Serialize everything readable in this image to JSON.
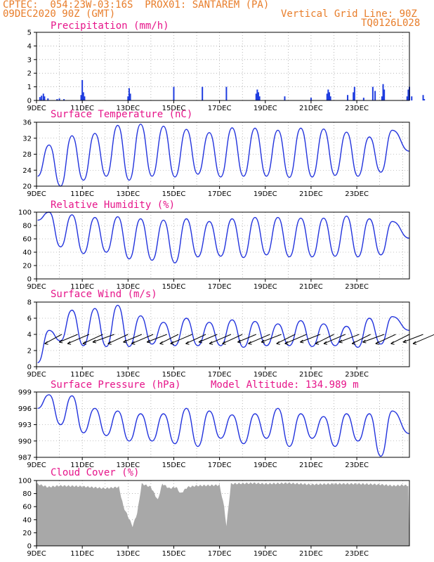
{
  "header": {
    "line1": "CPTEC:  054:23W-03:16S  PROX01: SANTAREM (PA)",
    "line2_left": "09DEC2020 90Z (GMT)",
    "line2_right": "Vertical Grid Line: 90Z",
    "line3_right": "TQ0126L028"
  },
  "colors": {
    "header": "#e87d2a",
    "title": "#e6158a",
    "series": "#2233dd",
    "bars": "#1f3de0",
    "cloud": "#a8a8a8"
  },
  "chart_data": [
    {
      "type": "bar",
      "title": "Precipitation (mm/h)",
      "ylim": [
        0,
        5
      ],
      "yticks": [
        0,
        1,
        2,
        3,
        4,
        5
      ],
      "x_categories": [
        "9DEC",
        "11DEC",
        "13DEC",
        "15DEC",
        "17DEC",
        "19DEC",
        "21DEC",
        "23DEC"
      ],
      "bars_day_value": [
        [
          0.15,
          0.25
        ],
        [
          0.22,
          0.35
        ],
        [
          0.3,
          0.5
        ],
        [
          0.35,
          0.3
        ],
        [
          0.5,
          0.15
        ],
        [
          0.9,
          0.1
        ],
        [
          1.0,
          0.15
        ],
        [
          1.2,
          0.1
        ],
        [
          1.95,
          0.4
        ],
        [
          2.0,
          1.5
        ],
        [
          2.05,
          0.6
        ],
        [
          2.1,
          0.3
        ],
        [
          4.0,
          0.3
        ],
        [
          4.05,
          0.9
        ],
        [
          4.1,
          0.5
        ],
        [
          6.0,
          1.0
        ],
        [
          7.25,
          1.0
        ],
        [
          8.3,
          1.0
        ],
        [
          9.6,
          0.5
        ],
        [
          9.65,
          0.8
        ],
        [
          9.7,
          0.6
        ],
        [
          9.75,
          0.3
        ],
        [
          10.85,
          0.3
        ],
        [
          12.0,
          0.2
        ],
        [
          12.7,
          0.5
        ],
        [
          12.75,
          0.8
        ],
        [
          12.8,
          0.6
        ],
        [
          12.85,
          0.3
        ],
        [
          13.6,
          0.4
        ],
        [
          13.85,
          0.6
        ],
        [
          13.9,
          1.0
        ],
        [
          14.3,
          0.2
        ],
        [
          14.7,
          1.0
        ],
        [
          14.8,
          0.7
        ],
        [
          15.1,
          0.3
        ],
        [
          15.15,
          1.2
        ],
        [
          15.2,
          0.8
        ],
        [
          16.2,
          0.3
        ],
        [
          16.25,
          0.8
        ],
        [
          16.3,
          1.0
        ],
        [
          16.4,
          0.3
        ],
        [
          16.9,
          0.4
        ],
        [
          16.95,
          0.1
        ]
      ]
    },
    {
      "type": "line",
      "title": "Surface Temperature (nC)",
      "ylim": [
        20,
        36
      ],
      "yticks": [
        20,
        24,
        28,
        32,
        36
      ],
      "x_categories": [
        "9DEC",
        "11DEC",
        "13DEC",
        "15DEC",
        "17DEC",
        "19DEC",
        "21DEC",
        "23DEC"
      ],
      "peaks": [
        30.3,
        32.6,
        33.2,
        35.2,
        35.5,
        35.0,
        34.2,
        33.4,
        34.6,
        34.5,
        34.0,
        34.5,
        34.3,
        33.5,
        32.3,
        34.0
      ],
      "troughs": [
        22.5,
        20.0,
        21.5,
        22.5,
        21.5,
        22.5,
        22.3,
        23.0,
        22.3,
        22.5,
        22.5,
        22.2,
        22.3,
        22.7,
        22.5,
        23.5
      ]
    },
    {
      "type": "line",
      "title": "Relative Humidity (%)",
      "ylim": [
        0,
        100
      ],
      "yticks": [
        0,
        20,
        40,
        60,
        80,
        100
      ],
      "x_categories": [
        "9DEC",
        "11DEC",
        "13DEC",
        "15DEC",
        "17DEC",
        "19DEC",
        "21DEC",
        "23DEC"
      ],
      "peaks": [
        100,
        96,
        92,
        93,
        90,
        88,
        90,
        86,
        90,
        92,
        92,
        91,
        91,
        94,
        90,
        86
      ],
      "troughs": [
        88,
        48,
        38,
        40,
        30,
        28,
        24,
        33,
        34,
        32,
        36,
        33,
        33,
        34,
        33,
        36
      ]
    },
    {
      "type": "line",
      "title": "Surface Wind (m/s)",
      "ylim": [
        0,
        8
      ],
      "yticks": [
        0,
        2,
        4,
        6,
        8
      ],
      "x_categories": [
        "9DEC",
        "11DEC",
        "13DEC",
        "15DEC",
        "17DEC",
        "19DEC",
        "21DEC",
        "23DEC"
      ],
      "peaks": [
        4.5,
        7.0,
        7.2,
        7.6,
        6.3,
        5.5,
        6.0,
        5.5,
        5.8,
        5.6,
        5.3,
        5.7,
        5.3,
        5.0,
        6.0,
        6.2
      ],
      "troughs": [
        0.5,
        3.2,
        2.6,
        2.5,
        2.5,
        2.8,
        2.6,
        2.6,
        2.6,
        2.4,
        2.6,
        2.6,
        2.5,
        2.6,
        2.4,
        2.8
      ],
      "barbs_day_dx_dy": [
        [
          0.1,
          -1.1,
          -0.6
        ],
        [
          0.8,
          -1.2,
          -0.5
        ],
        [
          1.3,
          -1.4,
          -0.6
        ],
        [
          1.9,
          -1.3,
          -0.6
        ],
        [
          2.4,
          -1.4,
          -0.5
        ],
        [
          3.0,
          -1.3,
          -0.6
        ],
        [
          3.6,
          -1.2,
          -0.5
        ],
        [
          4.1,
          -1.4,
          -0.6
        ],
        [
          4.7,
          -1.3,
          -0.5
        ],
        [
          5.2,
          -1.2,
          -0.6
        ],
        [
          5.8,
          -1.4,
          -0.6
        ],
        [
          6.4,
          -1.3,
          -0.6
        ],
        [
          6.9,
          -1.2,
          -0.5
        ],
        [
          7.5,
          -1.4,
          -0.6
        ],
        [
          8.0,
          -1.3,
          -0.6
        ],
        [
          8.6,
          -1.2,
          -0.5
        ],
        [
          9.2,
          -1.4,
          -0.6
        ],
        [
          9.7,
          -1.3,
          -0.5
        ],
        [
          10.3,
          -1.2,
          -0.6
        ],
        [
          10.8,
          -1.4,
          -0.6
        ],
        [
          11.4,
          -1.3,
          -0.5
        ],
        [
          12.0,
          -1.2,
          -0.6
        ],
        [
          12.5,
          -1.4,
          -0.6
        ],
        [
          13.1,
          -1.3,
          -0.5
        ],
        [
          13.6,
          -1.2,
          -0.6
        ],
        [
          14.2,
          -1.4,
          -0.5
        ],
        [
          14.7,
          -1.3,
          -0.6
        ],
        [
          15.3,
          -1.2,
          -0.6
        ],
        [
          15.9,
          -1.3,
          -0.5
        ],
        [
          16.4,
          -1.4,
          -0.6
        ]
      ]
    },
    {
      "type": "line",
      "title": "Surface Pressure (hPa)",
      "subtitle": "Model Altitude: 134.989 m",
      "ylim": [
        987,
        999
      ],
      "yticks": [
        987,
        990,
        993,
        996,
        999
      ],
      "x_categories": [
        "9DEC",
        "11DEC",
        "13DEC",
        "15DEC",
        "17DEC",
        "19DEC",
        "21DEC",
        "23DEC"
      ],
      "peaks": [
        998.5,
        998.3,
        996.0,
        995.5,
        995.0,
        995.0,
        996.0,
        995.5,
        994.8,
        995.0,
        996.0,
        995.0,
        994.5,
        995.0,
        995.0,
        995.5
      ],
      "troughs": [
        996.0,
        993.0,
        991.5,
        991.0,
        990.0,
        990.0,
        989.5,
        989.0,
        990.5,
        989.5,
        990.5,
        989.0,
        990.5,
        989.0,
        990.0,
        987.2
      ]
    },
    {
      "type": "area",
      "title": "Cloud Cover (%)",
      "ylim": [
        0,
        100
      ],
      "yticks": [
        0,
        20,
        40,
        60,
        80,
        100
      ],
      "x_categories": [
        "9DEC",
        "11DEC",
        "13DEC",
        "15DEC",
        "17DEC",
        "19DEC",
        "21DEC",
        "23DEC"
      ],
      "keyframes_day_value": [
        [
          0,
          95
        ],
        [
          0.5,
          90
        ],
        [
          1,
          92
        ],
        [
          2,
          91
        ],
        [
          3,
          88
        ],
        [
          3.6,
          90
        ],
        [
          3.8,
          60
        ],
        [
          4.0,
          45
        ],
        [
          4.2,
          30
        ],
        [
          4.4,
          50
        ],
        [
          4.6,
          95
        ],
        [
          5.0,
          90
        ],
        [
          5.3,
          70
        ],
        [
          5.5,
          95
        ],
        [
          5.8,
          88
        ],
        [
          6.1,
          90
        ],
        [
          6.3,
          80
        ],
        [
          6.6,
          90
        ],
        [
          7.0,
          92
        ],
        [
          8.0,
          93
        ],
        [
          8.2,
          60
        ],
        [
          8.3,
          30
        ],
        [
          8.5,
          95
        ],
        [
          9.5,
          96
        ],
        [
          10,
          95
        ],
        [
          11,
          96
        ],
        [
          12,
          94
        ],
        [
          13,
          95
        ],
        [
          14,
          95
        ],
        [
          15,
          94
        ],
        [
          15.6,
          92
        ],
        [
          16.0,
          93
        ],
        [
          16.3,
          92
        ]
      ]
    }
  ]
}
